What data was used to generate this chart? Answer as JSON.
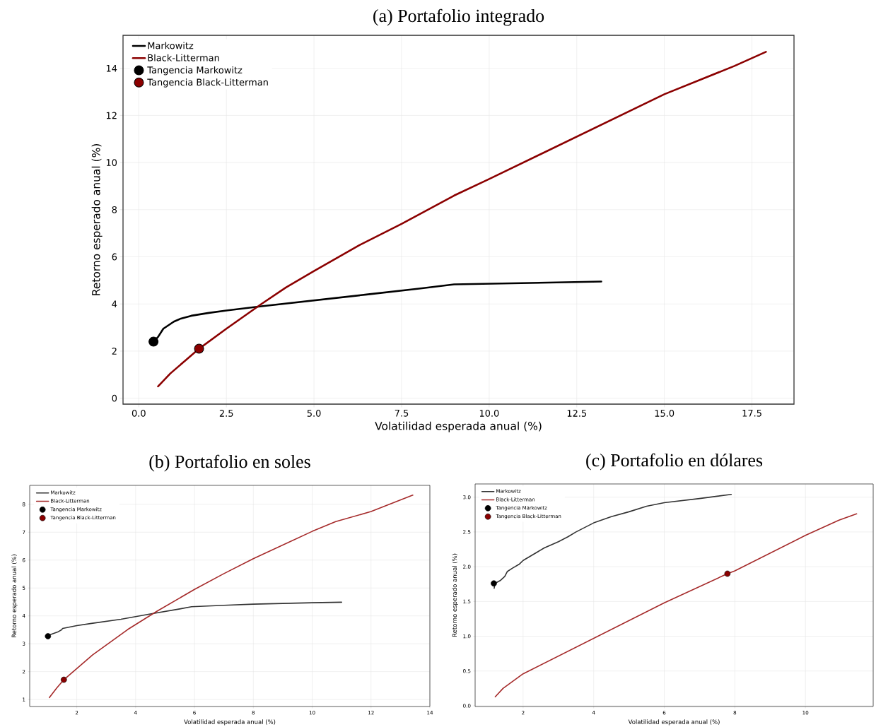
{
  "chart_data": [
    {
      "type": "line",
      "title": "(a) Portafolio integrado",
      "xlabel": "Volatilidad esperada anual (%)",
      "ylabel": "Retorno esperado anual (%)",
      "grid": true,
      "legend": "top left",
      "xlim": [
        -0.45,
        18.7
      ],
      "ylim": [
        -0.25,
        15.4
      ],
      "xticks": [
        {
          "value": 0,
          "label": "0.0"
        },
        2.5,
        {
          "value": 5,
          "label": "5.0"
        },
        7.5,
        {
          "value": 10,
          "label": "10.0"
        },
        12.5,
        {
          "value": 15,
          "label": "15.0"
        },
        17.5
      ],
      "yticks": [
        0,
        2,
        4,
        6,
        8,
        10,
        12,
        14
      ],
      "series": [
        {
          "name": "Markowitz",
          "type": "line",
          "color": "#000000",
          "x": [
            0.42,
            0.55,
            0.7,
            1.0,
            1.2,
            1.5,
            2.0,
            2.5,
            3.5,
            5.0,
            6.5,
            8.0,
            9.0,
            13.2
          ],
          "values": [
            2.4,
            2.6,
            2.95,
            3.25,
            3.38,
            3.5,
            3.62,
            3.72,
            3.9,
            4.15,
            4.4,
            4.65,
            4.83,
            4.95
          ]
        },
        {
          "name": "Black-Litterman",
          "type": "line",
          "color": "#8b0000",
          "x": [
            0.55,
            0.9,
            1.72,
            2.5,
            3.5,
            4.2,
            5.0,
            6.3,
            7.5,
            9.0,
            10.0,
            12.5,
            15.0,
            17.0,
            17.9
          ],
          "values": [
            0.5,
            1.05,
            2.1,
            2.95,
            4.0,
            4.7,
            5.4,
            6.5,
            7.4,
            8.6,
            9.3,
            11.1,
            12.9,
            14.1,
            14.7
          ]
        },
        {
          "name": "Tangencia Markowitz",
          "type": "scatter",
          "marker": "circle",
          "color": "#000000",
          "x": [
            0.42
          ],
          "values": [
            2.4
          ]
        },
        {
          "name": "Tangencia Black-Litterman",
          "type": "scatter",
          "marker": "circle",
          "color": "#8b0000",
          "x": [
            1.72
          ],
          "values": [
            2.1
          ]
        }
      ]
    },
    {
      "type": "line",
      "title": "(b) Portafolio en soles",
      "xlabel": "Volatilidad esperada anual (%)",
      "ylabel": "Retorno esperado anual (%)",
      "grid": true,
      "legend": "top left",
      "xlim": [
        0.4,
        14.0
      ],
      "ylim": [
        0.75,
        8.68
      ],
      "xticks": [
        2,
        4,
        6,
        8,
        10,
        12,
        14
      ],
      "yticks": [
        1,
        2,
        3,
        4,
        5,
        6,
        7,
        8
      ],
      "series": [
        {
          "name": "Markowitz",
          "type": "line",
          "color": "#333333",
          "x": [
            1.02,
            1.1,
            1.35,
            1.48,
            1.52,
            2.0,
            2.5,
            3.5,
            4.5,
            5.5,
            5.9,
            7.0,
            8.0,
            10.0,
            11.0
          ],
          "values": [
            3.27,
            3.33,
            3.42,
            3.5,
            3.55,
            3.65,
            3.73,
            3.88,
            4.07,
            4.25,
            4.33,
            4.38,
            4.42,
            4.47,
            4.49
          ]
        },
        {
          "name": "Black-Litterman",
          "type": "line",
          "color": "#a52a2a",
          "x": [
            1.07,
            1.31,
            1.56,
            2.54,
            3.73,
            4.73,
            6.0,
            6.99,
            8.0,
            10.0,
            10.8,
            12.0,
            13.42
          ],
          "values": [
            1.07,
            1.4,
            1.71,
            2.6,
            3.51,
            4.17,
            4.95,
            5.51,
            6.05,
            7.03,
            7.38,
            7.74,
            8.33
          ]
        },
        {
          "name": "Tangencia Markowitz",
          "type": "scatter",
          "marker": "circle",
          "color": "#000000",
          "x": [
            1.02
          ],
          "values": [
            3.27
          ]
        },
        {
          "name": "Tangencia Black-Litterman",
          "type": "scatter",
          "marker": "circle",
          "color": "#8b0000",
          "x": [
            1.56
          ],
          "values": [
            1.71
          ]
        }
      ]
    },
    {
      "type": "line",
      "title": "(c) Portafolio en dólares",
      "xlabel": "Volatilidad esperada anual (%)",
      "ylabel": "Retorno esperado anual (%)",
      "grid": true,
      "legend": "top left",
      "xlim": [
        0.64,
        11.92
      ],
      "ylim": [
        -0.01,
        3.19
      ],
      "xticks": [
        2,
        4,
        6,
        8,
        10
      ],
      "yticks": [
        {
          "value": 0,
          "label": "0.0"
        },
        0.5,
        {
          "value": 1,
          "label": "1.0"
        },
        1.5,
        {
          "value": 2,
          "label": "2.0"
        },
        2.5,
        {
          "value": 3,
          "label": "3.0"
        }
      ],
      "series": [
        {
          "name": "Markowitz",
          "type": "line",
          "color": "#333333",
          "x": [
            1.18,
            1.2,
            1.35,
            1.48,
            1.55,
            1.7,
            1.9,
            2.0,
            2.3,
            2.6,
            3.0,
            3.27,
            3.5,
            4.0,
            4.5,
            5.0,
            5.5,
            6.0,
            7.0,
            7.9
          ],
          "values": [
            1.69,
            1.76,
            1.8,
            1.86,
            1.93,
            1.98,
            2.04,
            2.09,
            2.18,
            2.27,
            2.36,
            2.43,
            2.5,
            2.63,
            2.72,
            2.79,
            2.87,
            2.92,
            2.98,
            3.04
          ]
        },
        {
          "name": "Black-Litterman",
          "type": "line",
          "color": "#a52a2a",
          "x": [
            1.21,
            1.43,
            2.0,
            4.0,
            6.0,
            7.79,
            8.0,
            10.0,
            10.95,
            11.45
          ],
          "values": [
            0.13,
            0.25,
            0.46,
            0.97,
            1.48,
            1.9,
            1.94,
            2.45,
            2.67,
            2.76
          ]
        },
        {
          "name": "Tangencia Markowitz",
          "type": "scatter",
          "marker": "circle",
          "color": "#000000",
          "x": [
            1.17
          ],
          "values": [
            1.76
          ]
        },
        {
          "name": "Tangencia Black-Litterman",
          "type": "scatter",
          "marker": "circle",
          "color": "#8b0000",
          "x": [
            7.79
          ],
          "values": [
            1.9
          ]
        }
      ]
    }
  ]
}
